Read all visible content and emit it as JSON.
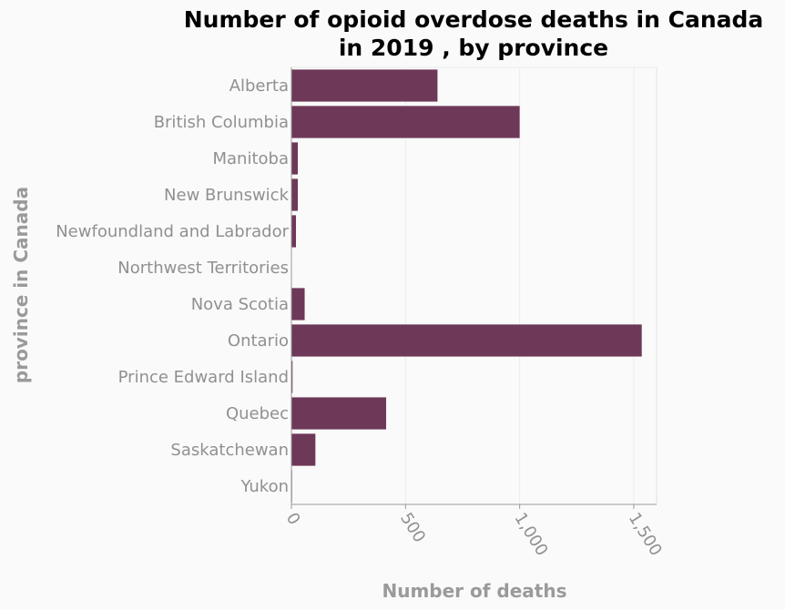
{
  "chart_data": {
    "type": "bar",
    "orientation": "horizontal",
    "title_lines": [
      "Number of opioid overdose deaths in Canada",
      "in 2019 , by province"
    ],
    "xlabel": "Number of deaths",
    "ylabel": "province in Canada",
    "categories": [
      "Alberta",
      "British Columbia",
      "Manitoba",
      "New Brunswick",
      "Newfoundland and Labrador",
      "Northwest Territories",
      "Nova Scotia",
      "Ontario",
      "Prince Edward Island",
      "Quebec",
      "Saskatchewan",
      "Yukon"
    ],
    "values": [
      640,
      1000,
      28,
      28,
      20,
      0,
      58,
      1535,
      5,
      415,
      105,
      3
    ],
    "xlim": [
      0,
      1600
    ],
    "xticks": [
      0,
      500,
      1000,
      1500
    ],
    "xtick_labels": [
      "0",
      "500",
      "1,000",
      "1,500"
    ],
    "grid": true,
    "bar_color": "#6e3858"
  }
}
